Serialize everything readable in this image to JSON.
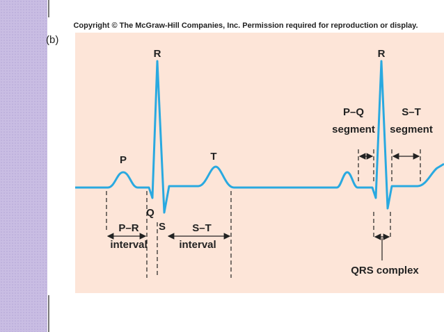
{
  "header": {
    "copyright": "Copyright © The McGraw-Hill Companies, Inc. Permission required for reproduction or display.",
    "panel_label": "(b)"
  },
  "waves": {
    "r_first": "R",
    "r_second": "R",
    "p": "P",
    "t": "T",
    "q": "Q",
    "s": "S"
  },
  "intervals": {
    "pr": {
      "line1": "P–R",
      "line2": "interval"
    },
    "st": {
      "line1": "S–T",
      "line2": "interval"
    },
    "pq_segment": {
      "line1": "P–Q",
      "line2": "segment"
    },
    "st_segment": {
      "line1": "S–T",
      "line2": "segment"
    },
    "qrs": "QRS complex"
  }
}
